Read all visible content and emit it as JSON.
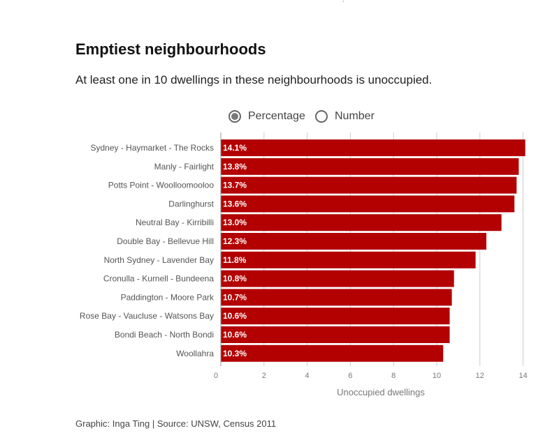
{
  "header": {
    "title": "Emptiest neighbourhoods",
    "subtitle": "At least one in 10 dwellings in these neighbourhoods is unoccupied."
  },
  "toggle": {
    "options": [
      {
        "label": "Percentage",
        "selected": true
      },
      {
        "label": "Number",
        "selected": false
      }
    ]
  },
  "footer": {
    "source": "Graphic: Inga Ting | Source: UNSW, Census 2011"
  },
  "colors": {
    "bar": "#b30000",
    "grid": "#cccccc",
    "axis": "#999999"
  },
  "chart_data": {
    "type": "bar",
    "orientation": "horizontal",
    "categories": [
      "Sydney - Haymarket - The Rocks",
      "Manly - Fairlight",
      "Potts Point - Woolloomooloo",
      "Darlinghurst",
      "Neutral Bay - Kirribilli",
      "Double Bay - Bellevue Hill",
      "North Sydney - Lavender Bay",
      "Cronulla - Kurnell - Bundeena",
      "Paddington - Moore Park",
      "Rose Bay - Vaucluse - Watsons Bay",
      "Bondi Beach - North Bondi",
      "Woollahra"
    ],
    "values": [
      14.1,
      13.8,
      13.7,
      13.6,
      13.0,
      12.3,
      11.8,
      10.8,
      10.7,
      10.6,
      10.6,
      10.3
    ],
    "value_labels": [
      "14.1%",
      "13.8%",
      "13.7%",
      "13.6%",
      "13.0%",
      "12.3%",
      "11.8%",
      "10.8%",
      "10.7%",
      "10.6%",
      "10.6%",
      "10.3%"
    ],
    "xlabel": "Unoccupied dwellings",
    "xlim": [
      0,
      14
    ],
    "xticks": [
      0,
      2,
      4,
      6,
      8,
      10,
      12,
      14
    ],
    "grid": true
  }
}
